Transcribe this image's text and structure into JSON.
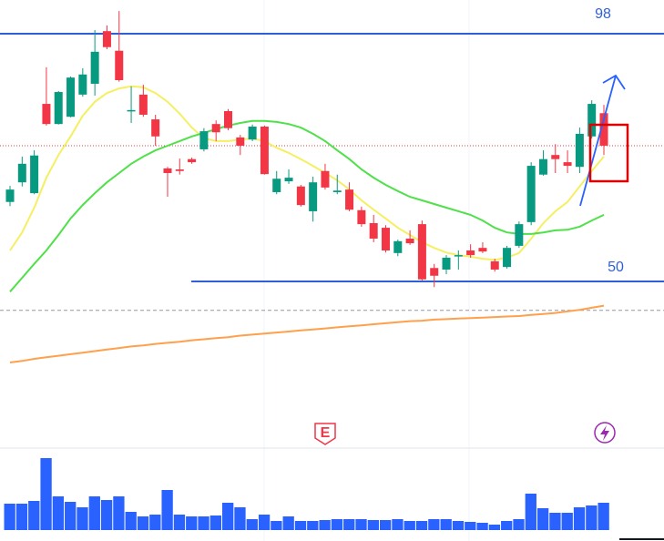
{
  "chart_data": {
    "type": "candlestick",
    "ylim": [
      18.06,
      104.53
    ],
    "up_color": "#089981",
    "down_color": "#f23645",
    "candles": {
      "open": [
        65.4,
        69.2,
        67.1,
        84.4,
        80.5,
        81.9,
        86.2,
        88.3,
        98.5,
        94.7,
        83.0,
        86.2,
        81.4,
        71.9,
        71.7,
        73.7,
        75.6,
        80.5,
        83.0,
        77.9,
        77.5,
        80.0,
        67.3,
        69.4,
        68.4,
        63.6,
        71.4,
        67.3,
        67.8,
        63.8,
        61.3,
        60.4,
        55.5,
        58.3,
        61.1,
        52.6,
        52.3,
        54.9,
        56.0,
        56.5,
        53.9,
        52.8,
        56.9,
        61.5,
        70.7,
        74.5,
        73.1,
        72.2,
        78.1,
        82.6
      ],
      "high": [
        68.5,
        74.2,
        75.4,
        91.5,
        86.9,
        89.7,
        91.3,
        98.7,
        99.6,
        102.4,
        87.8,
        88.1,
        82.3,
        72.2,
        73.8,
        74.0,
        79.7,
        81.2,
        83.4,
        78.4,
        80.4,
        80.2,
        71.4,
        71.7,
        68.7,
        70.3,
        72.8,
        70.7,
        69.2,
        64.5,
        62.9,
        60.9,
        58.1,
        59.9,
        61.8,
        53.4,
        55.1,
        56.0,
        57.2,
        57.6,
        54.4,
        56.9,
        61.6,
        73.1,
        75.4,
        76.6,
        75.4,
        79.8,
        85.1,
        84.2
      ],
      "low": [
        64.6,
        68.4,
        66.9,
        80.2,
        80.4,
        81.8,
        85.8,
        86.0,
        95.0,
        88.7,
        80.7,
        81.9,
        76.3,
        66.4,
        70.7,
        72.8,
        75.2,
        77.2,
        79.3,
        74.5,
        77.2,
        70.7,
        66.9,
        68.9,
        64.5,
        61.6,
        67.8,
        66.9,
        63.6,
        60.6,
        57.6,
        55.6,
        54.9,
        57.1,
        50.2,
        48.9,
        51.4,
        52.3,
        54.6,
        55.5,
        51.9,
        52.5,
        56.5,
        60.9,
        70.5,
        71.0,
        71.0,
        71.0,
        77.7,
        74.5
      ],
      "close": [
        67.8,
        72.8,
        74.4,
        80.5,
        86.7,
        89.5,
        90.1,
        94.5,
        95.4,
        89.0,
        83.2,
        82.3,
        78.1,
        71.0,
        71.4,
        73.1,
        79.1,
        78.9,
        79.7,
        76.3,
        80.0,
        70.8,
        69.9,
        70.1,
        64.8,
        69.2,
        68.2,
        67.6,
        63.9,
        61.1,
        58.3,
        56.0,
        57.8,
        57.4,
        50.4,
        51.1,
        54.6,
        55.1,
        55.1,
        55.8,
        52.3,
        56.5,
        61.1,
        72.4,
        73.7,
        73.7,
        72.4,
        78.6,
        84.4,
        76.3
      ]
    },
    "series": [
      {
        "color": "#f5ef62",
        "values": [
          56.0,
          59.5,
          64.3,
          70.1,
          74.5,
          78.1,
          82.1,
          84.8,
          86.5,
          87.4,
          87.8,
          87.6,
          86.5,
          84.8,
          82.5,
          79.8,
          77.7,
          77.2,
          77.2,
          77.5,
          77.7,
          77.2,
          75.9,
          74.9,
          73.7,
          72.4,
          71.0,
          69.6,
          67.8,
          65.7,
          63.9,
          62.2,
          60.4,
          59.0,
          57.6,
          56.5,
          55.6,
          55.1,
          54.8,
          54.4,
          54.2,
          54.6,
          55.5,
          58.3,
          61.3,
          63.6,
          65.4,
          68.4,
          71.4,
          74.2
        ]
      },
      {
        "color": "#4fe04a",
        "values": [
          48.0,
          50.7,
          53.4,
          56.0,
          59.0,
          62.2,
          64.8,
          67.1,
          69.2,
          71.0,
          72.8,
          74.2,
          75.4,
          76.3,
          77.2,
          78.1,
          78.8,
          79.5,
          80.2,
          80.7,
          81.1,
          81.1,
          80.9,
          80.5,
          79.8,
          78.6,
          77.2,
          75.4,
          73.7,
          71.7,
          70.1,
          68.7,
          67.5,
          66.4,
          65.7,
          65.0,
          64.3,
          63.6,
          62.9,
          61.8,
          60.4,
          59.5,
          59.2,
          59.2,
          59.5,
          59.9,
          60.0,
          60.6,
          61.8,
          62.9
        ]
      },
      {
        "color": "#ffa04c",
        "values": [
          34.3,
          34.6,
          35.0,
          35.3,
          35.6,
          35.9,
          36.2,
          36.5,
          36.8,
          37.1,
          37.4,
          37.6,
          37.9,
          38.1,
          38.3,
          38.6,
          38.8,
          39.0,
          39.2,
          39.5,
          39.7,
          39.9,
          40.1,
          40.3,
          40.5,
          40.7,
          40.9,
          41.1,
          41.3,
          41.5,
          41.7,
          41.9,
          42.1,
          42.3,
          42.4,
          42.6,
          42.7,
          42.8,
          42.9,
          43.0,
          43.1,
          43.2,
          43.3,
          43.5,
          43.7,
          43.9,
          44.2,
          44.5,
          44.9,
          45.3
        ]
      }
    ],
    "levels": [
      98,
      50
    ],
    "level_color": "#2f5fd8",
    "last_price": 76.3,
    "reference_price": 44.4,
    "volume": [
      29,
      29,
      32,
      79,
      37,
      31,
      25,
      37,
      33,
      37,
      20,
      15,
      17,
      44,
      17,
      15,
      15,
      16,
      30,
      25,
      12,
      17,
      10,
      15,
      10,
      10,
      11,
      12,
      12,
      12,
      11,
      11,
      12,
      10,
      10,
      12,
      12,
      10,
      9,
      8,
      6,
      10,
      12,
      40,
      24,
      19,
      19,
      25,
      27,
      30
    ],
    "volume_ylim": [
      0,
      90
    ],
    "volume_color": "#2962ff",
    "event_marker": "E"
  }
}
